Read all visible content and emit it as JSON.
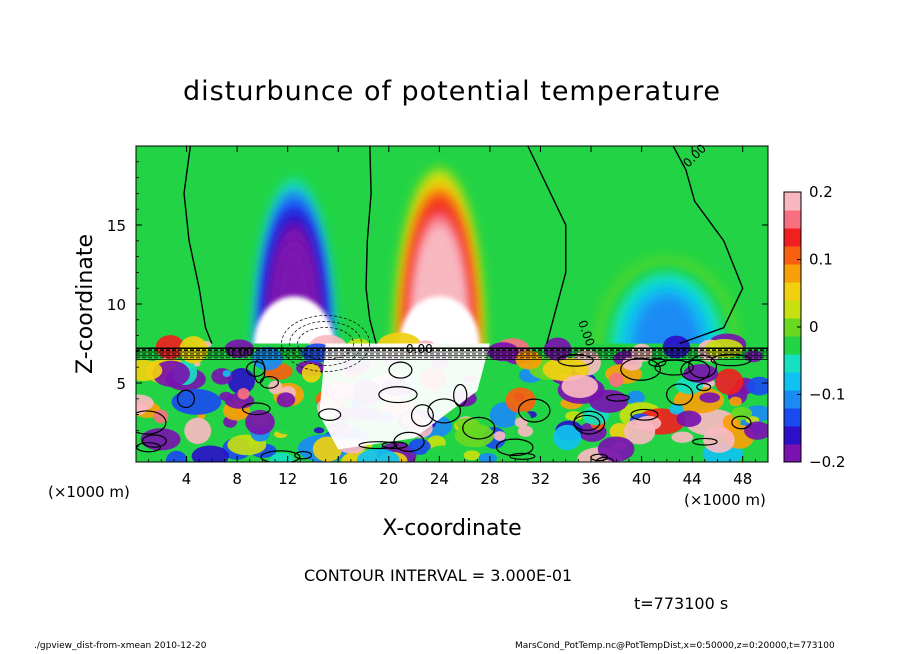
{
  "chart_data": {
    "type": "heatmap",
    "title": "disturbunce of potential temperature",
    "xlabel": "X-coordinate",
    "ylabel": "Z-coordinate",
    "x_unit_left": "(×1000 m)",
    "x_unit_right": "(×1000 m)",
    "xlim": [
      0,
      50
    ],
    "ylim": [
      0,
      20
    ],
    "x_ticks": [
      4,
      8,
      12,
      16,
      20,
      24,
      28,
      32,
      36,
      40,
      44,
      48
    ],
    "y_ticks": [
      5,
      10,
      15
    ],
    "colorbar": {
      "range": [
        -0.2,
        0.2
      ],
      "ticks": [
        {
          "value": 0.2,
          "label": "0.2"
        },
        {
          "value": 0.1,
          "label": "0.1"
        },
        {
          "value": 0,
          "label": "0"
        },
        {
          "value": -0.1,
          "label": "−0.1"
        },
        {
          "value": -0.2,
          "label": "−0.2"
        }
      ]
    },
    "contour_labels": [
      "0.00",
      "0.00",
      "0.00",
      "0.00"
    ],
    "features": [
      {
        "sign": "negative",
        "x_center": 12.5,
        "z_min": 7.5,
        "z_max": 19.5,
        "peak": -0.25
      },
      {
        "sign": "positive",
        "x_center": 24,
        "z_min": 7.5,
        "z_max": 19.5,
        "peak": 0.25
      },
      {
        "sign": "negative",
        "x_center": 42,
        "z_min": 7.5,
        "z_max": 13.5,
        "peak": -0.1
      }
    ]
  },
  "contour_interval": "CONTOUR INTERVAL = 3.000E-01",
  "time_label": "t=773100 s",
  "footer_left": "./gpview_dist-from-xmean  2010-12-20",
  "footer_right": "MarsCond_PotTemp.nc@PotTempDist,x=0:50000,z=0:20000,t=773100"
}
